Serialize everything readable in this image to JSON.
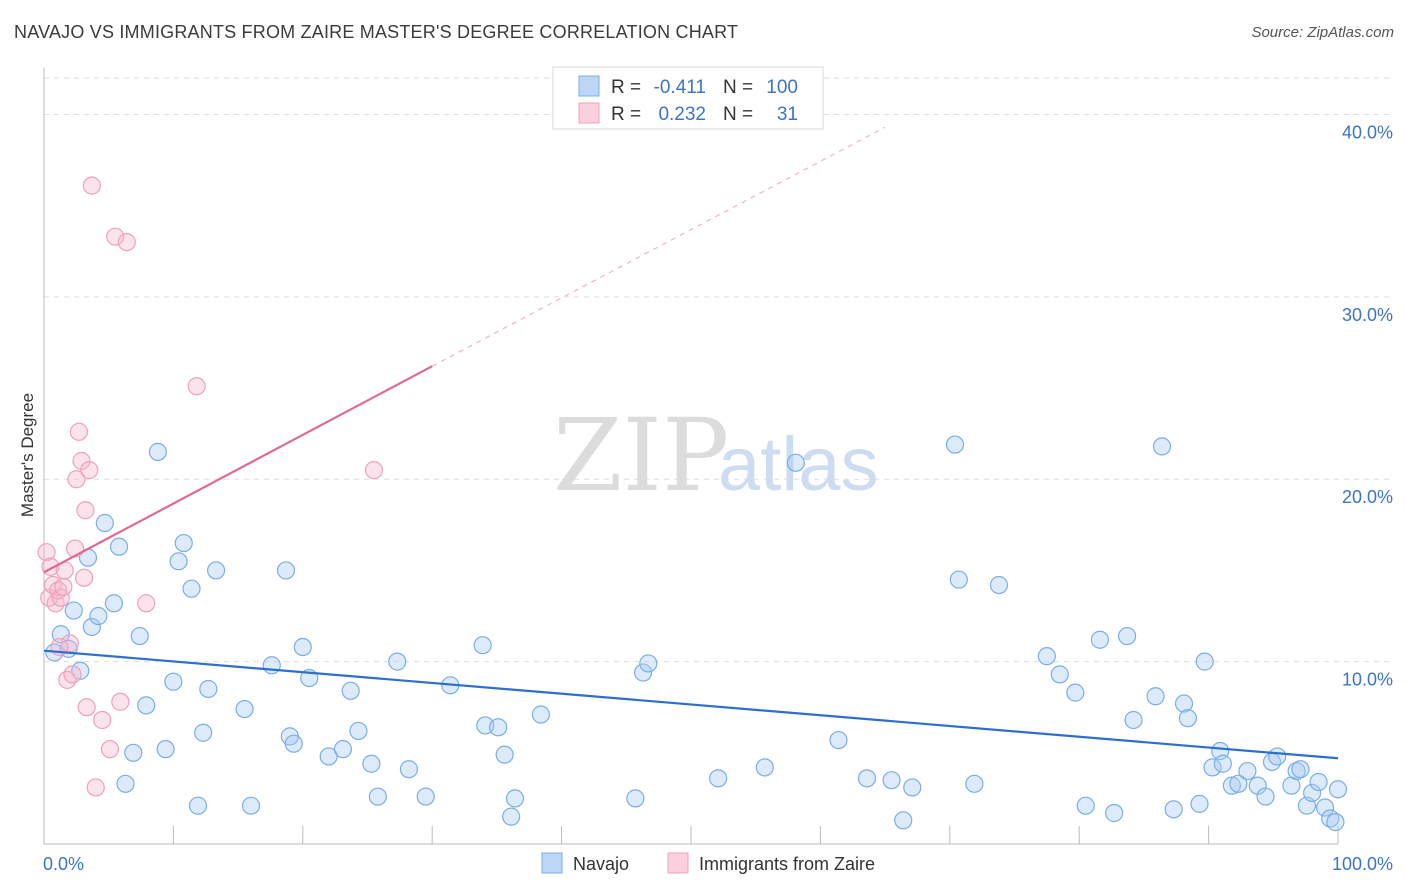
{
  "title": "NAVAJO VS IMMIGRANTS FROM ZAIRE MASTER'S DEGREE CORRELATION CHART",
  "source": "Source: ZipAtlas.com",
  "watermark": {
    "zip": "ZIP",
    "atlas": "atlas"
  },
  "colors": {
    "navajo": "#7aaee8",
    "navajo_line": "#2c6fd1",
    "zaire": "#f0a0bc",
    "zaire_line": "#e06a93",
    "tick": "#3d74c6"
  },
  "legend": {
    "rows": [
      {
        "r_label": "R =",
        "r_value": "-0.411",
        "n_label": "N =",
        "n_value": "100"
      },
      {
        "r_label": "R =",
        "r_value": "0.232",
        "n_label": "N =",
        "n_value": "31"
      }
    ]
  },
  "chart_data": {
    "type": "scatter",
    "title": "NAVAJO VS IMMIGRANTS FROM ZAIRE MASTER'S DEGREE CORRELATION CHART",
    "xlabel": "",
    "ylabel": "Master's Degree",
    "xlim": [
      0,
      100
    ],
    "ylim": [
      0,
      42
    ],
    "y_ticks": [
      10,
      20,
      30,
      40
    ],
    "y_tick_labels": [
      "10.0%",
      "20.0%",
      "30.0%",
      "40.0%"
    ],
    "x_tick_labels": [
      "0.0%",
      "100.0%"
    ],
    "grid": true,
    "legend_position": "top-center",
    "series": [
      {
        "name": "Navajo",
        "trend": {
          "x0": 0,
          "y0": 10.6,
          "x1": 100,
          "y1": 4.7
        },
        "points": [
          [
            0.8,
            10.5
          ],
          [
            1.3,
            11.5
          ],
          [
            1.9,
            10.7
          ],
          [
            2.3,
            12.8
          ],
          [
            2.8,
            9.5
          ],
          [
            3.4,
            15.7
          ],
          [
            3.7,
            11.9
          ],
          [
            4.2,
            12.5
          ],
          [
            4.7,
            17.6
          ],
          [
            5.4,
            13.2
          ],
          [
            5.8,
            16.3
          ],
          [
            6.3,
            3.3
          ],
          [
            6.9,
            5.0
          ],
          [
            7.4,
            11.4
          ],
          [
            7.9,
            7.6
          ],
          [
            8.8,
            21.5
          ],
          [
            9.4,
            5.2
          ],
          [
            10.0,
            8.9
          ],
          [
            10.4,
            15.5
          ],
          [
            10.8,
            16.5
          ],
          [
            11.4,
            14.0
          ],
          [
            11.9,
            2.1
          ],
          [
            12.3,
            6.1
          ],
          [
            12.7,
            8.5
          ],
          [
            13.3,
            15.0
          ],
          [
            15.5,
            7.4
          ],
          [
            16.0,
            2.1
          ],
          [
            17.6,
            9.8
          ],
          [
            18.7,
            15.0
          ],
          [
            19.0,
            5.9
          ],
          [
            19.3,
            5.5
          ],
          [
            20.0,
            10.8
          ],
          [
            20.5,
            9.1
          ],
          [
            22.0,
            4.8
          ],
          [
            23.1,
            5.2
          ],
          [
            23.7,
            8.4
          ],
          [
            24.3,
            6.2
          ],
          [
            25.3,
            4.4
          ],
          [
            25.8,
            2.6
          ],
          [
            27.3,
            10.0
          ],
          [
            28.2,
            4.1
          ],
          [
            29.5,
            2.6
          ],
          [
            31.4,
            8.7
          ],
          [
            33.9,
            10.9
          ],
          [
            34.1,
            6.5
          ],
          [
            35.1,
            6.4
          ],
          [
            35.6,
            4.9
          ],
          [
            36.1,
            1.5
          ],
          [
            36.4,
            2.5
          ],
          [
            38.4,
            7.1
          ],
          [
            45.7,
            2.5
          ],
          [
            46.3,
            9.4
          ],
          [
            46.7,
            9.9
          ],
          [
            52.1,
            3.6
          ],
          [
            55.7,
            4.2
          ],
          [
            58.1,
            20.9
          ],
          [
            61.4,
            5.7
          ],
          [
            63.6,
            3.6
          ],
          [
            65.5,
            3.5
          ],
          [
            66.4,
            1.3
          ],
          [
            67.1,
            3.1
          ],
          [
            70.4,
            21.9
          ],
          [
            70.7,
            14.5
          ],
          [
            71.9,
            3.3
          ],
          [
            73.8,
            14.2
          ],
          [
            77.5,
            10.3
          ],
          [
            78.5,
            9.3
          ],
          [
            79.7,
            8.3
          ],
          [
            80.5,
            2.1
          ],
          [
            81.6,
            11.2
          ],
          [
            82.7,
            1.7
          ],
          [
            83.7,
            11.4
          ],
          [
            84.2,
            6.8
          ],
          [
            85.9,
            8.1
          ],
          [
            86.4,
            21.8
          ],
          [
            87.3,
            1.9
          ],
          [
            88.1,
            7.7
          ],
          [
            88.4,
            6.9
          ],
          [
            89.3,
            2.2
          ],
          [
            89.7,
            10.0
          ],
          [
            90.3,
            4.2
          ],
          [
            90.9,
            5.1
          ],
          [
            91.1,
            4.4
          ],
          [
            91.8,
            3.2
          ],
          [
            92.3,
            3.3
          ],
          [
            93.0,
            4.0
          ],
          [
            93.8,
            3.2
          ],
          [
            94.4,
            2.6
          ],
          [
            94.9,
            4.5
          ],
          [
            95.3,
            4.8
          ],
          [
            96.4,
            3.2
          ],
          [
            96.8,
            4.0
          ],
          [
            97.1,
            4.1
          ],
          [
            97.6,
            2.1
          ],
          [
            98.0,
            2.8
          ],
          [
            98.5,
            3.4
          ],
          [
            99.0,
            2.0
          ],
          [
            99.4,
            1.4
          ],
          [
            99.8,
            1.2
          ],
          [
            100.0,
            3.0
          ]
        ]
      },
      {
        "name": "Immigrants from Zaire",
        "trend": {
          "x0": 0,
          "y0": 14.9,
          "x1": 30,
          "y1": 26.2,
          "dash_to_x": 65,
          "dash_to_y": 39.3
        },
        "points": [
          [
            0.2,
            16.0
          ],
          [
            0.4,
            13.5
          ],
          [
            0.5,
            15.2
          ],
          [
            0.7,
            14.2
          ],
          [
            0.9,
            13.2
          ],
          [
            1.1,
            13.9
          ],
          [
            1.3,
            13.5
          ],
          [
            1.5,
            14.1
          ],
          [
            1.6,
            15.0
          ],
          [
            1.8,
            9.0
          ],
          [
            2.0,
            11.0
          ],
          [
            2.2,
            9.3
          ],
          [
            2.4,
            16.2
          ],
          [
            2.5,
            20.0
          ],
          [
            2.7,
            22.6
          ],
          [
            2.9,
            21.0
          ],
          [
            3.1,
            14.6
          ],
          [
            3.3,
            7.5
          ],
          [
            3.5,
            20.5
          ],
          [
            3.7,
            36.1
          ],
          [
            4.0,
            3.1
          ],
          [
            4.5,
            6.8
          ],
          [
            5.1,
            5.2
          ],
          [
            5.5,
            33.3
          ],
          [
            5.9,
            7.8
          ],
          [
            6.4,
            33.0
          ],
          [
            7.9,
            13.2
          ],
          [
            11.8,
            25.1
          ],
          [
            25.5,
            20.5
          ],
          [
            3.2,
            18.3
          ],
          [
            1.2,
            10.8
          ]
        ]
      }
    ]
  },
  "bottom_legend": [
    {
      "label": "Navajo"
    },
    {
      "label": "Immigrants from Zaire"
    }
  ]
}
